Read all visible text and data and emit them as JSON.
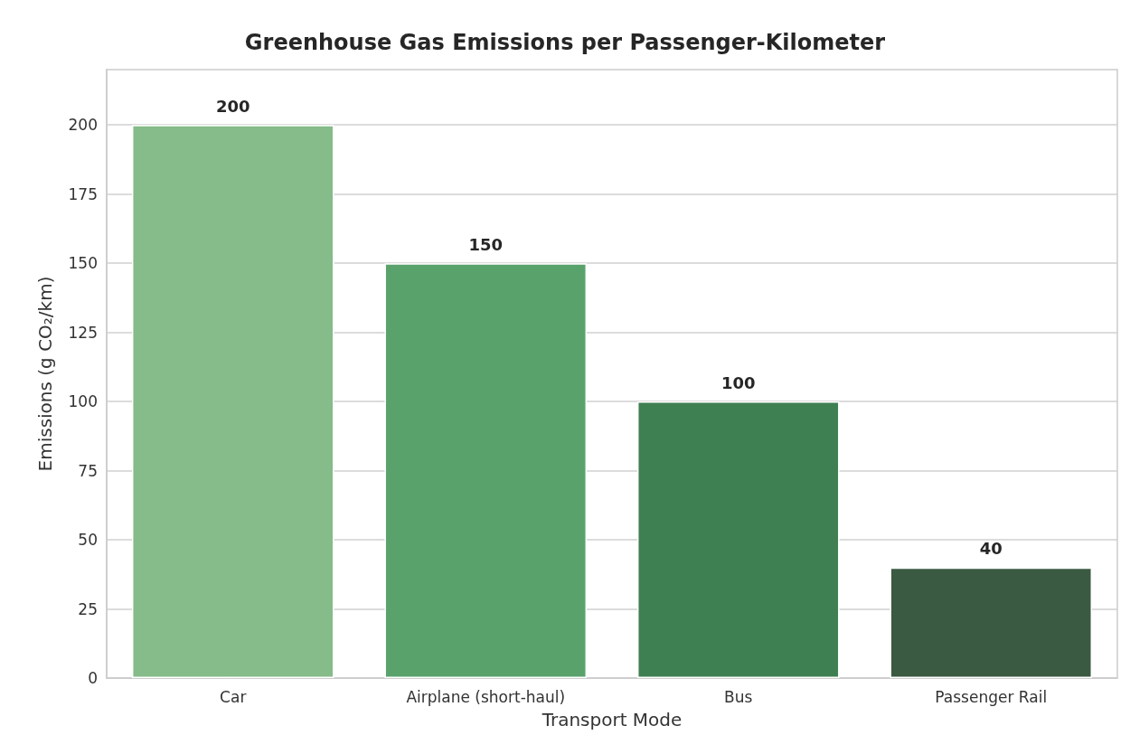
{
  "chart_data": {
    "type": "bar",
    "title": "Greenhouse Gas Emissions per Passenger-Kilometer",
    "xlabel": "Transport Mode",
    "ylabel": "Emissions (g CO₂/km)",
    "categories": [
      "Car",
      "Airplane (short-haul)",
      "Bus",
      "Passenger Rail"
    ],
    "values": [
      200,
      150,
      100,
      40
    ],
    "colors": [
      "#86bb8a",
      "#5aa26c",
      "#3f8052",
      "#3a5a42"
    ],
    "ylim": [
      0,
      220
    ],
    "yticks": [
      0,
      25,
      50,
      75,
      100,
      125,
      150,
      175,
      200
    ],
    "grid": "y",
    "data_labels": true
  }
}
